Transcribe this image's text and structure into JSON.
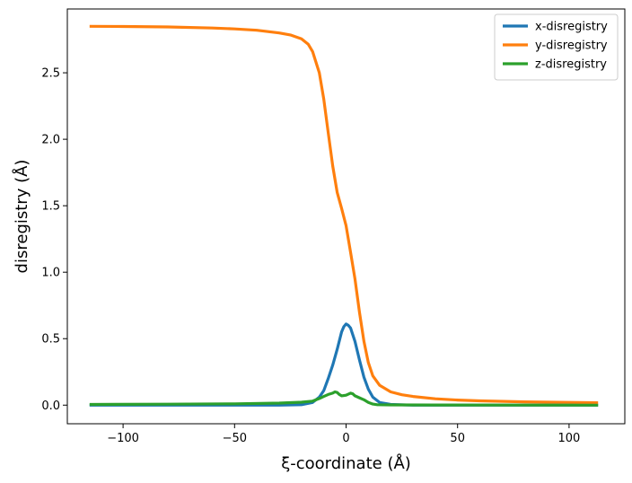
{
  "chart_data": {
    "type": "line",
    "xlabel": "ξ-coordinate (Å)",
    "ylabel": "disregistry (Å)",
    "xlim": [
      -125,
      125
    ],
    "ylim": [
      -0.14,
      2.98
    ],
    "x_ticks": [
      -100,
      -50,
      0,
      50,
      100
    ],
    "x_tick_labels": [
      "−100",
      "−50",
      "0",
      "50",
      "100"
    ],
    "y_ticks": [
      0.0,
      0.5,
      1.0,
      1.5,
      2.0,
      2.5
    ],
    "y_tick_labels": [
      "0.0",
      "0.5",
      "1.0",
      "1.5",
      "2.0",
      "2.5"
    ],
    "grid": false,
    "legend_position": "top-right",
    "series": [
      {
        "name": "x-disregistry",
        "color": "#1f77b4",
        "x": [
          -115,
          -30,
          -20,
          -15,
          -12,
          -10,
          -8,
          -6,
          -4,
          -2,
          -1,
          0,
          1,
          2,
          4,
          6,
          8,
          10,
          12,
          15,
          20,
          30,
          50,
          113
        ],
        "y": [
          0.0,
          0.0,
          0.003,
          0.02,
          0.06,
          0.11,
          0.2,
          0.3,
          0.42,
          0.55,
          0.59,
          0.61,
          0.6,
          0.58,
          0.48,
          0.34,
          0.21,
          0.12,
          0.06,
          0.02,
          0.005,
          0.0,
          0.0,
          0.0
        ]
      },
      {
        "name": "y-disregistry",
        "color": "#ff7f0e",
        "x": [
          -115,
          -100,
          -80,
          -60,
          -50,
          -40,
          -30,
          -25,
          -20,
          -17,
          -15,
          -12,
          -10,
          -8,
          -6,
          -4,
          -2,
          0,
          2,
          4,
          6,
          8,
          10,
          12,
          15,
          20,
          25,
          30,
          40,
          50,
          60,
          80,
          100,
          113
        ],
        "y": [
          2.85,
          2.848,
          2.845,
          2.837,
          2.83,
          2.82,
          2.8,
          2.785,
          2.755,
          2.715,
          2.66,
          2.5,
          2.3,
          2.05,
          1.8,
          1.6,
          1.48,
          1.35,
          1.15,
          0.95,
          0.7,
          0.48,
          0.32,
          0.22,
          0.15,
          0.1,
          0.078,
          0.065,
          0.048,
          0.038,
          0.032,
          0.025,
          0.021,
          0.018
        ]
      },
      {
        "name": "z-disregistry",
        "color": "#2ca02c",
        "x": [
          -115,
          -80,
          -50,
          -30,
          -20,
          -15,
          -12,
          -10,
          -8,
          -6,
          -5,
          -4,
          -3,
          -2,
          0,
          2,
          3,
          4,
          6,
          8,
          10,
          12,
          14,
          20,
          40,
          113
        ],
        "y": [
          0.005,
          0.007,
          0.01,
          0.015,
          0.022,
          0.03,
          0.05,
          0.065,
          0.08,
          0.09,
          0.1,
          0.095,
          0.08,
          0.07,
          0.075,
          0.09,
          0.085,
          0.07,
          0.055,
          0.04,
          0.02,
          0.008,
          0.003,
          0.002,
          0.001,
          0.0
        ]
      }
    ]
  }
}
